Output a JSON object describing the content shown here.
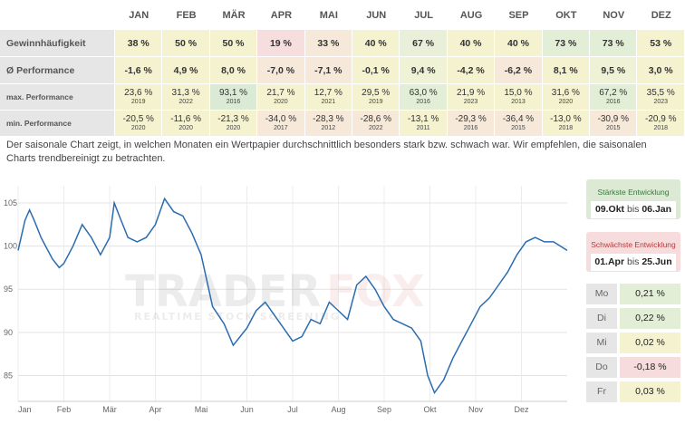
{
  "table": {
    "months": [
      "JAN",
      "FEB",
      "MÄR",
      "APR",
      "MAI",
      "JUN",
      "JUL",
      "AUG",
      "SEP",
      "OKT",
      "NOV",
      "DEZ"
    ],
    "rows": {
      "gewinn": {
        "label": "Gewinnhäufigkeit",
        "values": [
          "38 %",
          "50 %",
          "50 %",
          "19 %",
          "33 %",
          "40 %",
          "67 %",
          "40 %",
          "40 %",
          "73 %",
          "73 %",
          "53 %"
        ]
      },
      "perf": {
        "label": "Ø Performance",
        "values": [
          "-1,6 %",
          "4,9 %",
          "8,0 %",
          "-7,0 %",
          "-7,1 %",
          "-0,1 %",
          "9,4 %",
          "-4,2 %",
          "-6,2 %",
          "8,1 %",
          "9,5 %",
          "3,0 %"
        ]
      },
      "max": {
        "label": "max. Performance",
        "values": [
          "23,6 %",
          "31,3 %",
          "93,1 %",
          "21,7 %",
          "12,7 %",
          "29,5 %",
          "63,0 %",
          "21,9 %",
          "15,0 %",
          "31,6 %",
          "67,2 %",
          "35,5 %"
        ],
        "years": [
          "2019",
          "2022",
          "2016",
          "2020",
          "2021",
          "2019",
          "2016",
          "2023",
          "2013",
          "2020",
          "2016",
          "2023"
        ]
      },
      "min": {
        "label": "min. Performance",
        "values": [
          "-20,5 %",
          "-11,6 %",
          "-21,3 %",
          "-34,0 %",
          "-28,3 %",
          "-28,6 %",
          "-13,1 %",
          "-29,3 %",
          "-36,4 %",
          "-13,0 %",
          "-30,9 %",
          "-20,9 %"
        ],
        "years": [
          "2020",
          "2020",
          "2020",
          "2017",
          "2012",
          "2022",
          "2011",
          "2016",
          "2015",
          "2018",
          "2015",
          "2018"
        ]
      }
    },
    "colors": {
      "gewinn": [
        "#f4f2cf",
        "#f4f2cf",
        "#f4f2cf",
        "#f6dede",
        "#f6e9d9",
        "#f4f2cf",
        "#e9f0d9",
        "#f4f2cf",
        "#f4f2cf",
        "#e3eed6",
        "#e3eed6",
        "#f4f2cf"
      ],
      "perf": [
        "#f4f2cf",
        "#f4f2cf",
        "#f4f2cf",
        "#f6e9d9",
        "#f6e9d9",
        "#f4f2cf",
        "#f0f2d6",
        "#f4f2cf",
        "#f6e9d9",
        "#f4f2cf",
        "#f0f2d6",
        "#f4f2cf"
      ],
      "max": [
        "#f4f2cf",
        "#f4f2cf",
        "#dbead4",
        "#f4f2cf",
        "#f4f2cf",
        "#f4f2cf",
        "#e3eed6",
        "#f4f2cf",
        "#f4f2cf",
        "#f4f2cf",
        "#e3eed6",
        "#f4f2cf"
      ],
      "min": [
        "#f4f2cf",
        "#f4f2cf",
        "#f4f2cf",
        "#f6e9d9",
        "#f6e9d9",
        "#f6e9d9",
        "#f4f2cf",
        "#f6e9d9",
        "#f6e9d9",
        "#f4f2cf",
        "#f6e9d9",
        "#f4f2cf"
      ]
    }
  },
  "description": "Der saisonale Chart zeigt, in welchen Monaten ein Wertpapier durchschnittlich besonders stark bzw. schwach war. Wir empfehlen, die saisonalen Charts trendbereinigt zu betrachten.",
  "watermark": {
    "brand_left": "TRADER",
    "brand_right": "FOX",
    "tagline": "REALTIME STOCK SCREENING"
  },
  "chart_data": {
    "type": "line",
    "x_ticks": [
      "Jan",
      "Feb",
      "Mär",
      "Apr",
      "Mai",
      "Jun",
      "Jul",
      "Aug",
      "Sep",
      "Okt",
      "Nov",
      "Dez"
    ],
    "y_ticks": [
      85,
      90,
      95,
      100,
      105
    ],
    "ylim": [
      82,
      107
    ],
    "grid": true,
    "line_color": "#2b6cb0",
    "series": [
      {
        "name": "",
        "x": [
          0,
          0.15,
          0.25,
          0.35,
          0.5,
          0.6,
          0.75,
          0.9,
          1.0,
          1.2,
          1.4,
          1.6,
          1.8,
          2.0,
          2.1,
          2.25,
          2.4,
          2.6,
          2.8,
          3.0,
          3.2,
          3.4,
          3.6,
          3.8,
          4.0,
          4.25,
          4.5,
          4.7,
          5.0,
          5.2,
          5.4,
          5.6,
          5.8,
          6.0,
          6.2,
          6.4,
          6.6,
          6.8,
          7.0,
          7.2,
          7.4,
          7.6,
          7.8,
          8.0,
          8.2,
          8.4,
          8.6,
          8.8,
          8.95,
          9.1,
          9.3,
          9.5,
          9.7,
          9.9,
          10.1,
          10.3,
          10.5,
          10.7,
          10.9,
          11.1,
          11.3,
          11.5,
          11.7,
          12.0
        ],
        "y": [
          99.5,
          103.0,
          104.2,
          103.0,
          101.0,
          100.0,
          98.5,
          97.5,
          98.0,
          100.0,
          102.5,
          101.0,
          99.0,
          101.0,
          105.0,
          103.0,
          101.0,
          100.5,
          101.0,
          102.5,
          105.5,
          104.0,
          103.5,
          101.5,
          99.0,
          93.0,
          91.0,
          88.5,
          90.5,
          92.5,
          93.5,
          92.0,
          90.5,
          89.0,
          89.5,
          91.5,
          91.0,
          93.5,
          92.5,
          91.5,
          95.5,
          96.5,
          95.0,
          93.0,
          91.5,
          91.0,
          90.5,
          89.0,
          85.0,
          83.0,
          84.5,
          87.0,
          89.0,
          91.0,
          93.0,
          94.0,
          95.5,
          97.0,
          99.0,
          100.5,
          101.0,
          100.5,
          100.5,
          99.5
        ]
      }
    ]
  },
  "strongest": {
    "title": "Stärkste Entwicklung",
    "from": "09.Okt",
    "to": "06.Jan",
    "sep": "bis"
  },
  "weakest": {
    "title": "Schwächste Entwicklung",
    "from": "01.Apr",
    "to": "25.Jun",
    "sep": "bis"
  },
  "weekdays": [
    {
      "day": "Mo",
      "value": "0,21 %",
      "color": "#e3eed6"
    },
    {
      "day": "Di",
      "value": "0,22 %",
      "color": "#e3eed6"
    },
    {
      "day": "Mi",
      "value": "0,02 %",
      "color": "#f4f2cf"
    },
    {
      "day": "Do",
      "value": "-0,18 %",
      "color": "#f6dcdc"
    },
    {
      "day": "Fr",
      "value": "0,03 %",
      "color": "#f4f2cf"
    }
  ]
}
